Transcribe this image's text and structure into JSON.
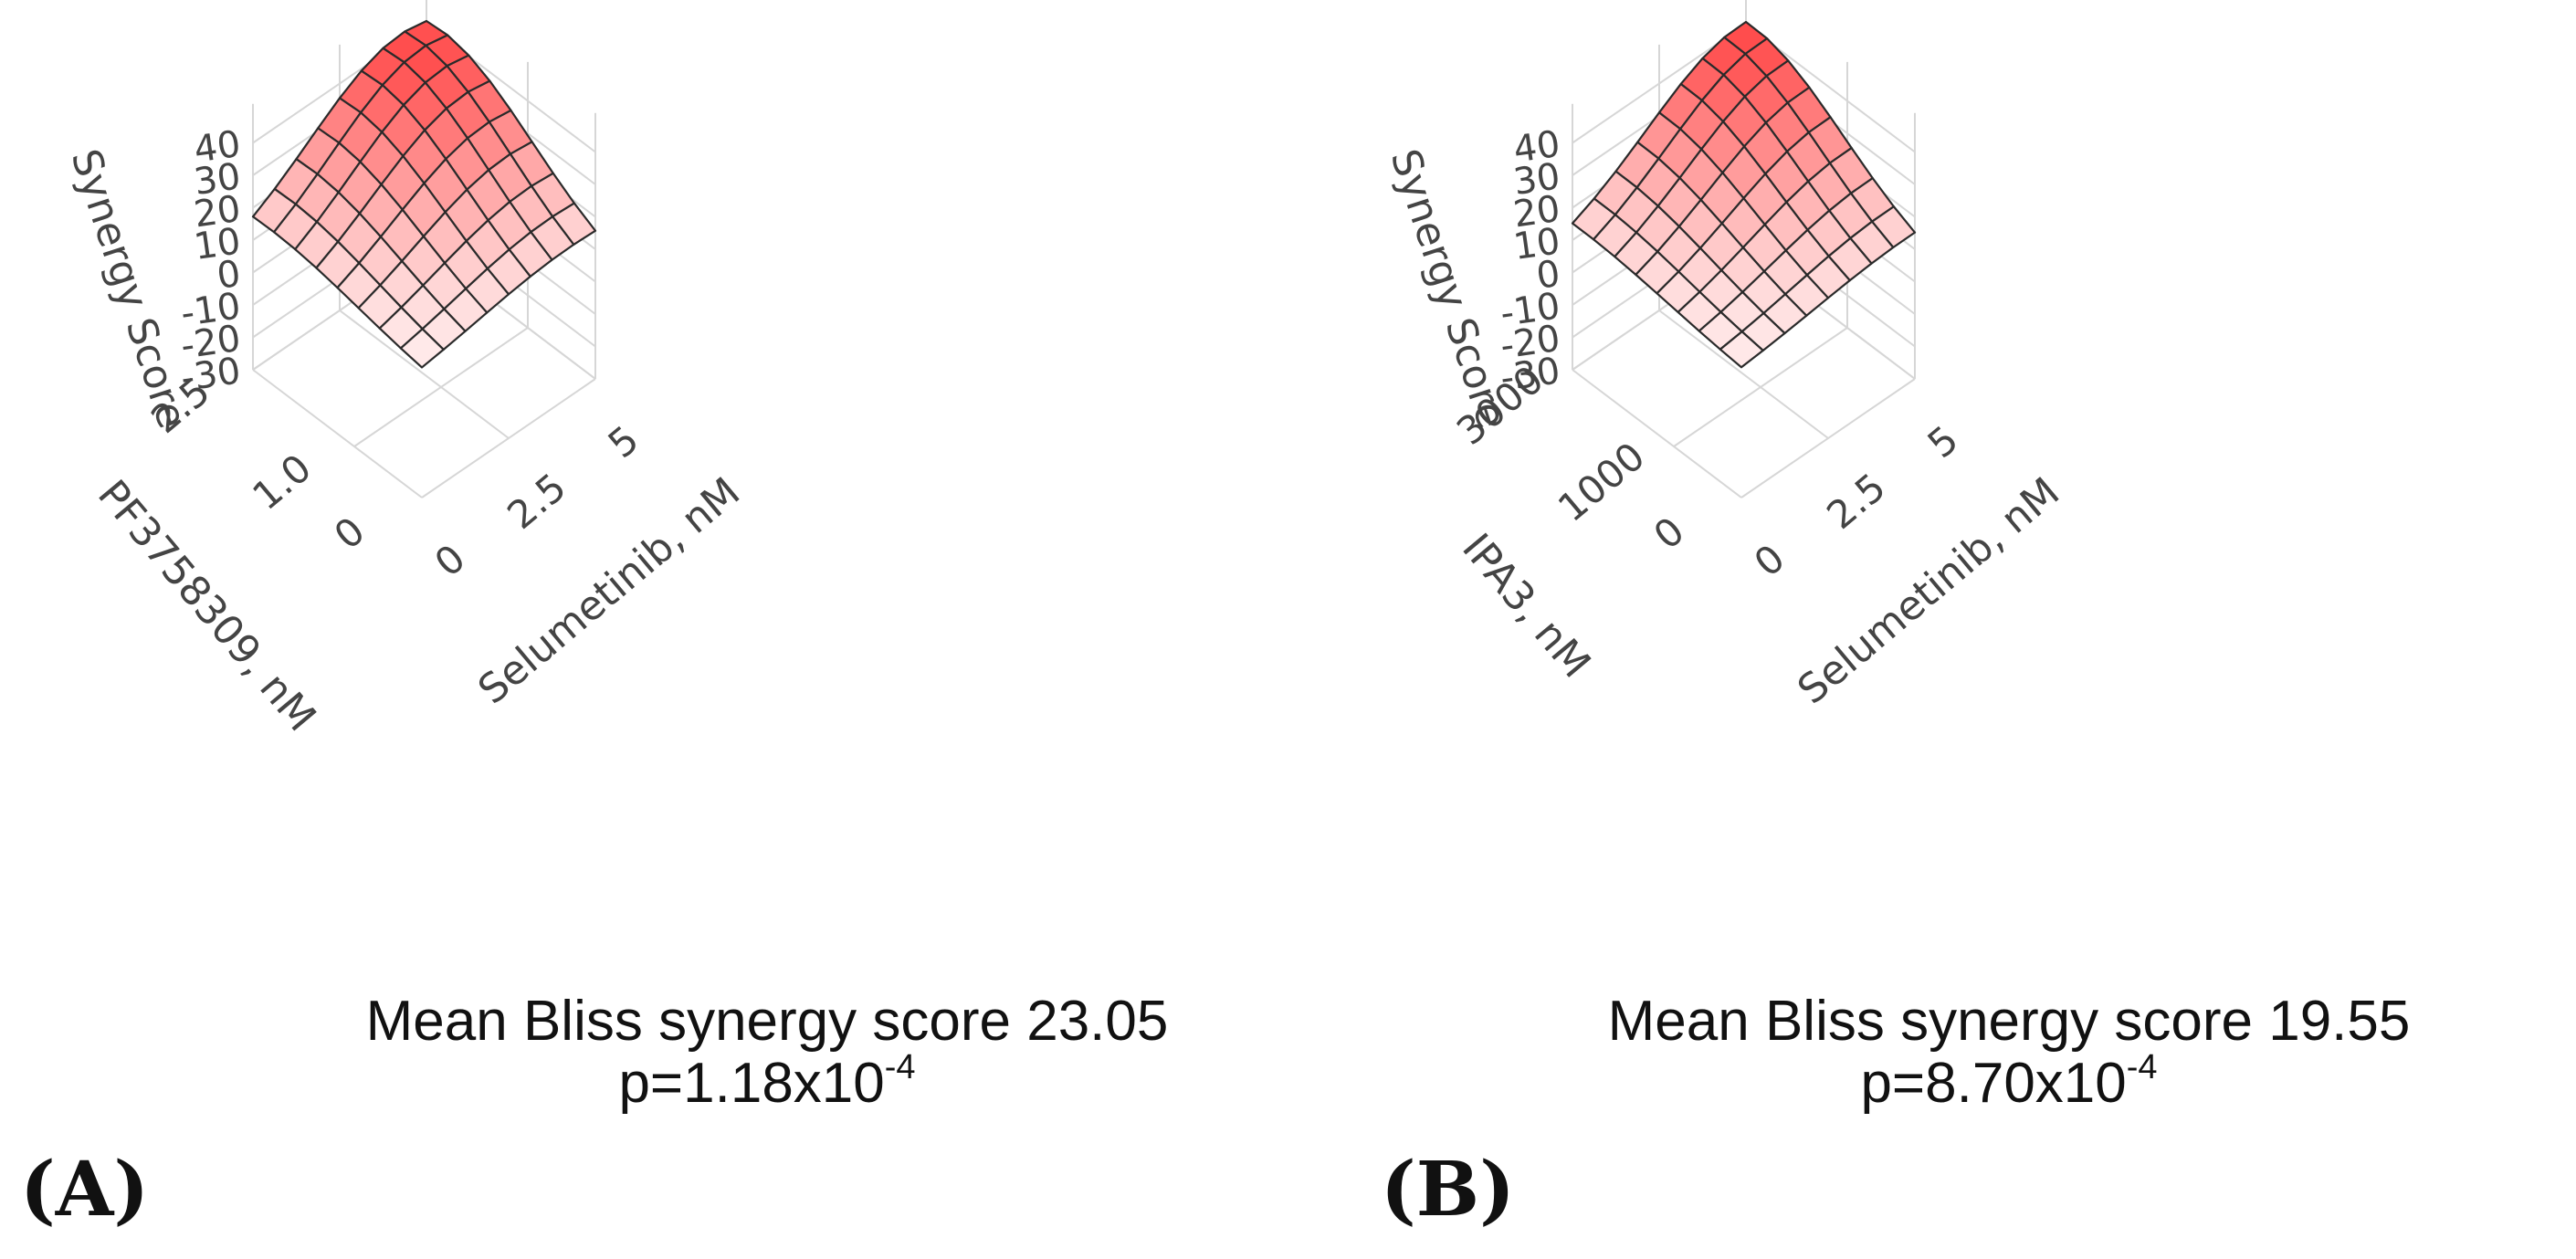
{
  "chart_data": [
    {
      "type": "surface3d",
      "panel_label": "(A)",
      "zlabel": "Synergy Score",
      "zticks": [
        "40",
        "30",
        "20",
        "10",
        "0",
        "-10",
        "-20",
        "-30"
      ],
      "x_drug": "Selumetinib, nM",
      "x_ticks": [
        "0",
        "2.5",
        "5"
      ],
      "y_drug": "PF3758309, nM",
      "y_ticks": [
        "0",
        "1.0",
        "2.5"
      ],
      "caption_line1": "Mean Bliss synergy score 23.05",
      "p_value_base": "p=1.18x10",
      "p_value_exp": "-4",
      "surface_peak": 43,
      "surface_edge": 8,
      "color": "#ff4a4a"
    },
    {
      "type": "surface3d",
      "panel_label": "(B)",
      "zlabel": "Synergy Score",
      "zticks": [
        "40",
        "30",
        "20",
        "10",
        "0",
        "-10",
        "-20",
        "-30"
      ],
      "x_drug": "Selumetinib, nM",
      "x_ticks": [
        "0",
        "2.5",
        "5"
      ],
      "y_drug": "IPA3, nM",
      "y_ticks": [
        "0",
        "1000",
        "3000"
      ],
      "caption_line1": "Mean Bliss synergy score 19.55",
      "p_value_base": "p=8.70x10",
      "p_value_exp": "-4",
      "surface_peak": 41,
      "surface_edge": 9,
      "color": "#ff4a4a"
    }
  ]
}
